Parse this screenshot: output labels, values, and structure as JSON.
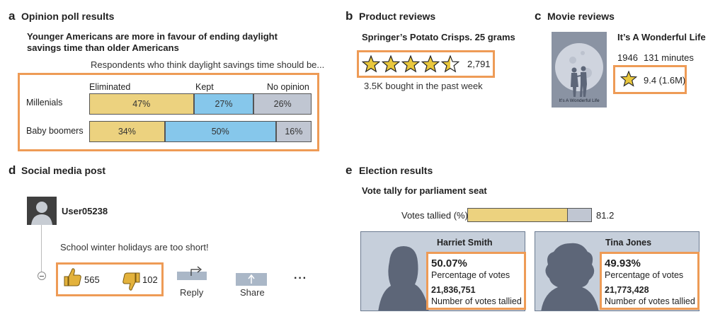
{
  "panels": {
    "a": {
      "letter": "a",
      "title": "Opinion poll results",
      "headline": "Younger Americans are more in favour of ending daylight savings time than older Americans",
      "subtitle": "Respondents who think daylight savings time should be...",
      "columns": [
        "Eliminated",
        "Kept",
        "No opinion"
      ],
      "colors": {
        "eliminated": "#ecd27f",
        "kept": "#86c7eb",
        "no_opinion": "#c0c6d2"
      },
      "rows": [
        {
          "label": "Millenials",
          "eliminated": 47,
          "kept": 27,
          "no_opinion": 26,
          "eliminated_label": "47%",
          "kept_label": "27%",
          "no_opinion_label": "26%"
        },
        {
          "label": "Baby boomers",
          "eliminated": 34,
          "kept": 50,
          "no_opinion": 16,
          "eliminated_label": "34%",
          "kept_label": "50%",
          "no_opinion_label": "16%"
        }
      ]
    },
    "b": {
      "letter": "b",
      "title": "Product reviews",
      "product": "Springer’s Potato Crisps. 25 grams",
      "rating": 4.5,
      "rating_max": 5,
      "review_count": "2,791",
      "bought": "3.5K bought in the past week",
      "star_color": "#e9c73d"
    },
    "c": {
      "letter": "c",
      "title": "Movie reviews",
      "movie_title": "It’s A Wonderful Life",
      "year": "1946",
      "runtime": "131 minutes",
      "rating": "9.4 (1.6M)",
      "poster_caption": "It’s A Wonderful Life",
      "poster_icons": [
        "moon-icon",
        "couple-silhouette-icon"
      ]
    },
    "d": {
      "letter": "d",
      "title": "Social media post",
      "username": "User05238",
      "post_text": "School winter holidays are too short!",
      "likes": "565",
      "dislikes": "102",
      "reply_label": "Reply",
      "share_label": "Share",
      "more_label": "···",
      "icons": [
        "avatar-icon",
        "thumbs-up-icon",
        "thumbs-down-icon",
        "reply-icon",
        "share-icon",
        "collapse-icon"
      ]
    },
    "e": {
      "letter": "e",
      "title": "Election results",
      "headline": "Vote tally for parliament seat",
      "tallied_label": "Votes tallied (%)",
      "tallied_value": 81.2,
      "tallied_text": "81.2",
      "bar_color": "#ecd27f",
      "candidates": [
        {
          "name": "Harriet Smith",
          "percent": "50.07%",
          "percent_label": "Percentage of votes",
          "votes": "21,836,751",
          "votes_label": "Number of votes tallied"
        },
        {
          "name": "Tina Jones",
          "percent": "49.93%",
          "percent_label": "Percentage of votes",
          "votes": "21,773,428",
          "votes_label": "Number of votes tallied"
        }
      ]
    }
  },
  "highlight_color": "#ee9b56"
}
